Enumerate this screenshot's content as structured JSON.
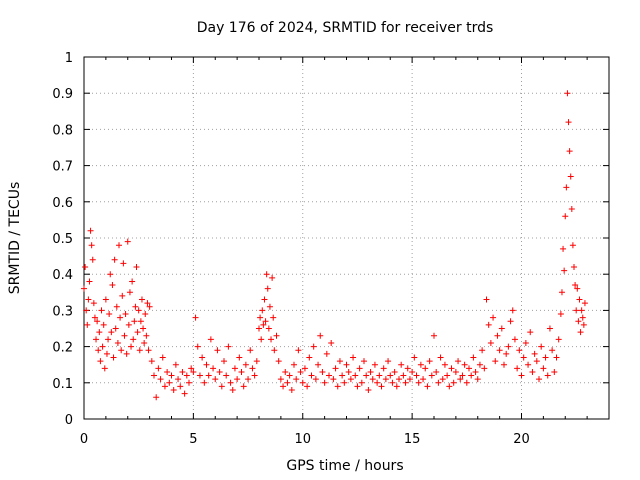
{
  "chart_data": {
    "type": "scatter",
    "title": "Day 176 of 2024, SRMTID for receiver trds",
    "xlabel": "GPS time / hours",
    "ylabel": "SRMTID / TECUs",
    "xlim": [
      0,
      24
    ],
    "ylim": [
      0,
      1
    ],
    "xticks": [
      0,
      5,
      10,
      15,
      20
    ],
    "yticks": [
      0,
      0.1,
      0.2,
      0.3,
      0.4,
      0.5,
      0.6,
      0.7,
      0.8,
      0.9,
      1
    ],
    "xtick_labels": [
      "0",
      "5",
      "10",
      "15",
      "20"
    ],
    "ytick_labels": [
      "0",
      "0.1",
      "0.2",
      "0.3",
      "0.4",
      "0.5",
      "0.6",
      "0.7",
      "0.8",
      "0.9",
      "1"
    ],
    "grid": true,
    "marker": "+",
    "color": "#ff0000",
    "series": [
      {
        "name": "SRMTID",
        "x": [
          0.0,
          0.05,
          0.1,
          0.15,
          0.2,
          0.25,
          0.3,
          0.35,
          0.4,
          0.45,
          0.5,
          0.55,
          0.6,
          0.65,
          0.7,
          0.75,
          0.8,
          0.85,
          0.9,
          0.95,
          1.0,
          1.05,
          1.1,
          1.15,
          1.2,
          1.25,
          1.3,
          1.35,
          1.4,
          1.45,
          1.5,
          1.55,
          1.6,
          1.65,
          1.7,
          1.75,
          1.8,
          1.85,
          1.9,
          1.95,
          2.0,
          2.05,
          2.1,
          2.15,
          2.2,
          2.25,
          2.3,
          2.35,
          2.4,
          2.45,
          2.5,
          2.55,
          2.6,
          2.65,
          2.7,
          2.75,
          2.8,
          2.85,
          2.9,
          2.95,
          3.0,
          3.1,
          3.2,
          3.3,
          3.4,
          3.5,
          3.6,
          3.7,
          3.8,
          3.9,
          4.0,
          4.1,
          4.2,
          4.3,
          4.4,
          4.5,
          4.6,
          4.7,
          4.8,
          4.9,
          5.0,
          5.1,
          5.2,
          5.3,
          5.4,
          5.5,
          5.6,
          5.7,
          5.8,
          5.9,
          6.0,
          6.1,
          6.2,
          6.3,
          6.4,
          6.5,
          6.6,
          6.7,
          6.8,
          6.9,
          7.0,
          7.1,
          7.2,
          7.3,
          7.4,
          7.5,
          7.6,
          7.7,
          7.8,
          7.9,
          8.0,
          8.05,
          8.1,
          8.15,
          8.2,
          8.25,
          8.3,
          8.35,
          8.4,
          8.45,
          8.5,
          8.55,
          8.6,
          8.65,
          8.7,
          8.8,
          8.9,
          9.0,
          9.1,
          9.2,
          9.3,
          9.4,
          9.5,
          9.6,
          9.7,
          9.8,
          9.9,
          10.0,
          10.1,
          10.2,
          10.3,
          10.4,
          10.5,
          10.6,
          10.7,
          10.8,
          10.9,
          11.0,
          11.1,
          11.2,
          11.3,
          11.4,
          11.5,
          11.6,
          11.7,
          11.8,
          11.9,
          12.0,
          12.1,
          12.2,
          12.3,
          12.4,
          12.5,
          12.6,
          12.7,
          12.8,
          12.9,
          13.0,
          13.1,
          13.2,
          13.3,
          13.4,
          13.5,
          13.6,
          13.7,
          13.8,
          13.9,
          14.0,
          14.1,
          14.2,
          14.3,
          14.4,
          14.5,
          14.6,
          14.7,
          14.8,
          14.9,
          15.0,
          15.1,
          15.2,
          15.3,
          15.4,
          15.5,
          15.6,
          15.7,
          15.8,
          15.9,
          16.0,
          16.1,
          16.2,
          16.3,
          16.4,
          16.5,
          16.6,
          16.7,
          16.8,
          16.9,
          17.0,
          17.1,
          17.2,
          17.3,
          17.4,
          17.5,
          17.6,
          17.7,
          17.8,
          17.9,
          18.0,
          18.1,
          18.2,
          18.3,
          18.4,
          18.5,
          18.6,
          18.7,
          18.8,
          18.9,
          19.0,
          19.1,
          19.2,
          19.3,
          19.4,
          19.5,
          19.6,
          19.7,
          19.8,
          19.9,
          20.0,
          20.1,
          20.2,
          20.3,
          20.4,
          20.5,
          20.6,
          20.7,
          20.8,
          20.9,
          21.0,
          21.1,
          21.2,
          21.3,
          21.4,
          21.5,
          21.6,
          21.7,
          21.8,
          21.85,
          21.9,
          21.95,
          22.0,
          22.05,
          22.1,
          22.15,
          22.2,
          22.25,
          22.3,
          22.35,
          22.4,
          22.45,
          22.5,
          22.55,
          22.6,
          22.65,
          22.7,
          22.75,
          22.8,
          22.85,
          22.9
        ],
        "y": [
          0.36,
          0.42,
          0.3,
          0.26,
          0.33,
          0.38,
          0.52,
          0.48,
          0.44,
          0.32,
          0.28,
          0.22,
          0.27,
          0.19,
          0.24,
          0.16,
          0.3,
          0.2,
          0.26,
          0.14,
          0.33,
          0.18,
          0.22,
          0.29,
          0.4,
          0.24,
          0.37,
          0.17,
          0.44,
          0.25,
          0.31,
          0.21,
          0.48,
          0.28,
          0.19,
          0.34,
          0.43,
          0.23,
          0.29,
          0.18,
          0.49,
          0.26,
          0.35,
          0.2,
          0.38,
          0.22,
          0.27,
          0.31,
          0.42,
          0.24,
          0.3,
          0.19,
          0.27,
          0.33,
          0.25,
          0.21,
          0.29,
          0.23,
          0.32,
          0.19,
          0.31,
          0.16,
          0.12,
          0.06,
          0.14,
          0.11,
          0.17,
          0.09,
          0.13,
          0.1,
          0.12,
          0.08,
          0.15,
          0.11,
          0.09,
          0.13,
          0.07,
          0.12,
          0.1,
          0.14,
          0.13,
          0.28,
          0.2,
          0.12,
          0.17,
          0.1,
          0.15,
          0.12,
          0.22,
          0.14,
          0.11,
          0.19,
          0.13,
          0.09,
          0.16,
          0.12,
          0.2,
          0.1,
          0.08,
          0.14,
          0.11,
          0.17,
          0.13,
          0.09,
          0.15,
          0.11,
          0.19,
          0.14,
          0.12,
          0.16,
          0.25,
          0.28,
          0.22,
          0.3,
          0.26,
          0.33,
          0.27,
          0.4,
          0.36,
          0.25,
          0.31,
          0.22,
          0.39,
          0.28,
          0.19,
          0.23,
          0.16,
          0.11,
          0.09,
          0.13,
          0.1,
          0.12,
          0.08,
          0.15,
          0.11,
          0.19,
          0.13,
          0.1,
          0.14,
          0.09,
          0.17,
          0.12,
          0.2,
          0.11,
          0.15,
          0.23,
          0.13,
          0.1,
          0.18,
          0.12,
          0.21,
          0.11,
          0.14,
          0.09,
          0.16,
          0.12,
          0.1,
          0.15,
          0.13,
          0.11,
          0.17,
          0.12,
          0.09,
          0.14,
          0.1,
          0.16,
          0.12,
          0.08,
          0.13,
          0.11,
          0.15,
          0.1,
          0.12,
          0.09,
          0.14,
          0.11,
          0.16,
          0.12,
          0.1,
          0.13,
          0.09,
          0.11,
          0.15,
          0.12,
          0.1,
          0.14,
          0.11,
          0.13,
          0.17,
          0.12,
          0.1,
          0.15,
          0.11,
          0.14,
          0.09,
          0.16,
          0.12,
          0.23,
          0.13,
          0.1,
          0.17,
          0.11,
          0.15,
          0.12,
          0.09,
          0.14,
          0.1,
          0.13,
          0.16,
          0.11,
          0.12,
          0.15,
          0.1,
          0.14,
          0.12,
          0.17,
          0.13,
          0.11,
          0.15,
          0.19,
          0.14,
          0.33,
          0.26,
          0.21,
          0.28,
          0.16,
          0.23,
          0.19,
          0.25,
          0.15,
          0.18,
          0.2,
          0.27,
          0.3,
          0.22,
          0.14,
          0.19,
          0.12,
          0.17,
          0.21,
          0.15,
          0.24,
          0.13,
          0.18,
          0.16,
          0.11,
          0.2,
          0.14,
          0.17,
          0.12,
          0.25,
          0.19,
          0.13,
          0.17,
          0.22,
          0.29,
          0.35,
          0.47,
          0.41,
          0.56,
          0.64,
          0.9,
          0.82,
          0.74,
          0.67,
          0.58,
          0.48,
          0.42,
          0.37,
          0.3,
          0.36,
          0.27,
          0.33,
          0.24,
          0.3,
          0.28,
          0.26,
          0.32
        ]
      }
    ]
  }
}
